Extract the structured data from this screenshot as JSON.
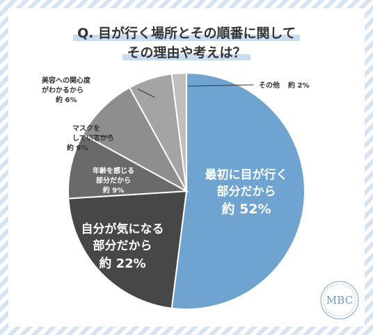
{
  "title": {
    "line1": "Q. 目が行く場所とその順番に関して",
    "line2": "その理由や考えは？"
  },
  "logo": {
    "text": "MBC"
  },
  "colors": {
    "accent": "#c9dcf0",
    "stripe": "#d6e3f2"
  },
  "chart_data": {
    "type": "pie",
    "start_angle_deg": 0,
    "direction": "clockwise",
    "slices": [
      {
        "label_lines": [
          "最初に目が行く",
          "部分だから"
        ],
        "value_label": "約 52%",
        "value": 52,
        "color": "#6fa4d0"
      },
      {
        "label_lines": [
          "自分が気になる",
          "部分だから"
        ],
        "value_label": "約 22%",
        "value": 22,
        "color": "#474747"
      },
      {
        "label_lines": [
          "年齢を感じる",
          "部分だから"
        ],
        "value_label": "約 9%",
        "value": 9,
        "color": "#6a6a6a"
      },
      {
        "label_lines": [
          "マスクを",
          "しているから"
        ],
        "value_label": "約 9%",
        "value": 9,
        "color": "#8e8e8e"
      },
      {
        "label_lines": [
          "美容への関心度",
          "がわかるから"
        ],
        "value_label": "約 6%",
        "value": 6,
        "color": "#a4a4a4"
      },
      {
        "label_lines": [
          "その他"
        ],
        "value_label": "約 2%",
        "value": 2,
        "color": "#bfbfbf"
      }
    ]
  }
}
